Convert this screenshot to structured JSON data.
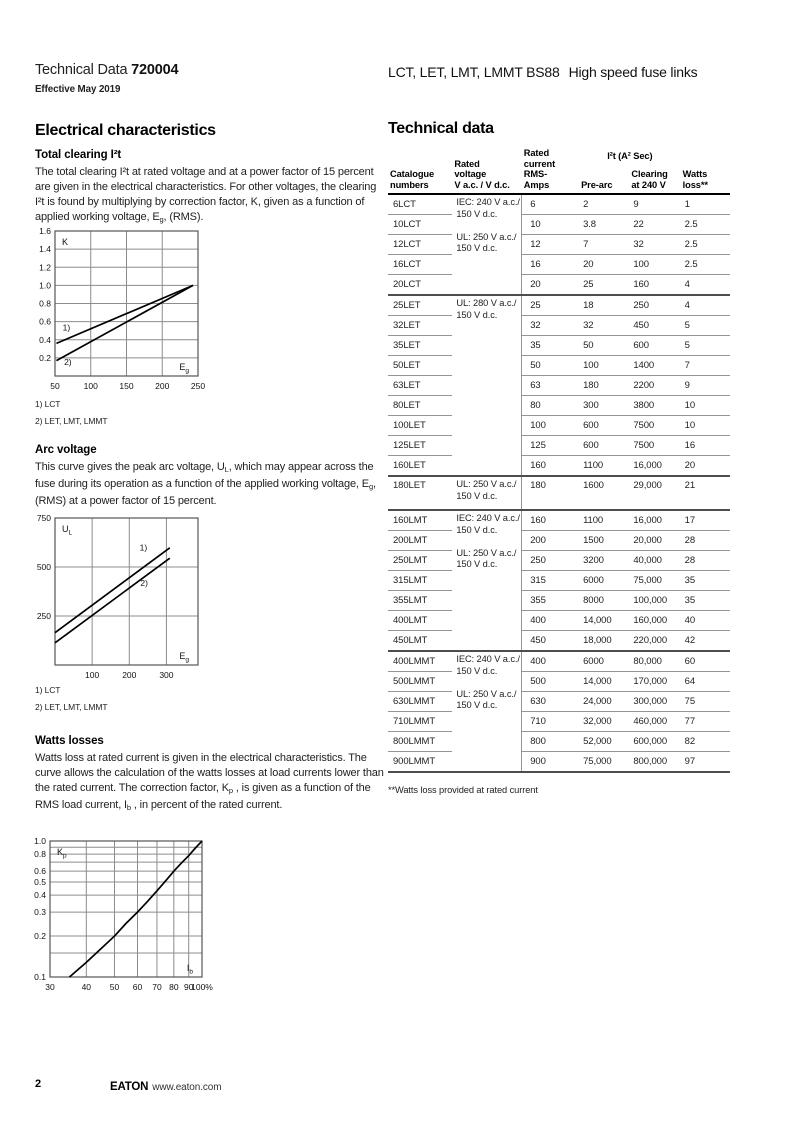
{
  "header": {
    "doc_type": "Technical Data ",
    "doc_number": "720004",
    "effective": "Effective May 2019",
    "product_title": "LCT, LET, LMT, LMMT BS88",
    "product_subtitle": "High speed fuse links"
  },
  "left": {
    "section_title": "Electrical characteristics",
    "clearing": {
      "title": "Total clearing I²t",
      "para": [
        {
          "t": "The total clearing I²t at rated voltage and at a power factor of 15 percent are given in the electrical characteristics. For other voltages, the clearing I²t is found by multiplying by correction factor, K, given as a function of applied working voltage, E"
        },
        {
          "t": "g",
          "sub": true
        },
        {
          "t": ", (RMS)."
        }
      ]
    },
    "arc": {
      "title": "Arc voltage",
      "para": [
        {
          "t": "This curve gives the peak arc voltage, U"
        },
        {
          "t": "L",
          "sub": true
        },
        {
          "t": ", which may appear across the fuse during its operation as a function of the applied working voltage, E"
        },
        {
          "t": "g",
          "sub": true
        },
        {
          "t": ", (RMS) at a power factor of 15 percent."
        }
      ]
    },
    "watts": {
      "title": "Watts losses",
      "para": [
        {
          "t": "Watts loss at rated current is given in the electrical characteristics. The curve allows the calculation of the watts losses at load currents lower than the rated current. The correction factor, K"
        },
        {
          "t": "p",
          "sub": true
        },
        {
          "t": " , is given as a function of the RMS load current, I"
        },
        {
          "t": "b",
          "sub": true
        },
        {
          "t": " , in percent of the rated current."
        }
      ]
    },
    "footnotes": {
      "l1": "1) LCT",
      "l2": "2) LET, LMT, LMMT"
    }
  },
  "right": {
    "section_title": "Technical data",
    "footnote": "**Watts loss provided at rated current",
    "table": {
      "headers": {
        "catalogue": "Catalogue\nnumbers",
        "voltage": "Rated\nvoltage\nV a.c. / V d.c.",
        "current": "Rated\ncurrent\nRMS-\nAmps",
        "i2t_span": "I²t (A² Sec)",
        "prearc": "Pre-arc",
        "clearing": "Clearing\nat 240 V",
        "watts": "Watts\nloss**"
      },
      "groups": [
        {
          "voltage": "IEC: 240 V a.c./\n150 V d.c.\n\nUL: 250 V a.c./\n150 V d.c.",
          "rows": [
            [
              "6LCT",
              "6",
              "2",
              "9",
              "1"
            ],
            [
              "10LCT",
              "10",
              "3.8",
              "22",
              "2.5"
            ],
            [
              "12LCT",
              "12",
              "7",
              "32",
              "2.5"
            ],
            [
              "16LCT",
              "16",
              "20",
              "100",
              "2.5"
            ],
            [
              "20LCT",
              "20",
              "25",
              "160",
              "4"
            ]
          ]
        },
        {
          "voltage": "UL: 280 V a.c./\n150 V d.c.",
          "rows": [
            [
              "25LET",
              "25",
              "18",
              "250",
              "4"
            ],
            [
              "32LET",
              "32",
              "32",
              "450",
              "5"
            ],
            [
              "35LET",
              "35",
              "50",
              "600",
              "5"
            ],
            [
              "50LET",
              "50",
              "100",
              "1400",
              "7"
            ],
            [
              "63LET",
              "63",
              "180",
              "2200",
              "9"
            ],
            [
              "80LET",
              "80",
              "300",
              "3800",
              "10"
            ],
            [
              "100LET",
              "100",
              "600",
              "7500",
              "10"
            ],
            [
              "125LET",
              "125",
              "600",
              "7500",
              "16"
            ],
            [
              "160LET",
              "160",
              "1100",
              "16,000",
              "20"
            ]
          ]
        },
        {
          "voltage": "UL: 250 V a.c./\n150 V d.c.",
          "tall": true,
          "rows": [
            [
              "180LET",
              "180",
              "1600",
              "29,000",
              "21"
            ]
          ]
        },
        {
          "voltage": "IEC: 240 V a.c./\n150 V d.c.\n\nUL: 250 V a.c./\n150 V d.c.",
          "rows": [
            [
              "160LMT",
              "160",
              "1100",
              "16,000",
              "17"
            ],
            [
              "200LMT",
              "200",
              "1500",
              "20,000",
              "28"
            ],
            [
              "250LMT",
              "250",
              "3200",
              "40,000",
              "28"
            ],
            [
              "315LMT",
              "315",
              "6000",
              "75,000",
              "35"
            ],
            [
              "355LMT",
              "355",
              "8000",
              "100,000",
              "35"
            ],
            [
              "400LMT",
              "400",
              "14,000",
              "160,000",
              "40"
            ],
            [
              "450LMT",
              "450",
              "18,000",
              "220,000",
              "42"
            ]
          ]
        },
        {
          "voltage": "IEC: 240 V a.c./\n150 V d.c.\n\nUL: 250 V a.c./\n150 V d.c.",
          "rows": [
            [
              "400LMMT",
              "400",
              "6000",
              "80,000",
              "60"
            ],
            [
              "500LMMT",
              "500",
              "14,000",
              "170,000",
              "64"
            ],
            [
              "630LMMT",
              "630",
              "24,000",
              "300,000",
              "75"
            ],
            [
              "710LMMT",
              "710",
              "32,000",
              "460,000",
              "77"
            ],
            [
              "800LMMT",
              "800",
              "52,000",
              "600,000",
              "82"
            ],
            [
              "900LMMT",
              "900",
              "75,000",
              "800,000",
              "97"
            ]
          ]
        }
      ]
    }
  },
  "footer": {
    "page_number": "2",
    "brand": "EATON",
    "url": "www.eaton.com"
  },
  "chart_data": [
    {
      "name": "total-clearing-correction-factor",
      "type": "line",
      "xscale": "linear",
      "yscale": "linear",
      "xlim": [
        50,
        250
      ],
      "ylim": [
        0,
        1.6
      ],
      "xticks": [
        {
          "v": 50,
          "l": "50"
        },
        {
          "v": 100,
          "l": "100"
        },
        {
          "v": 150,
          "l": "150"
        },
        {
          "v": 200,
          "l": "200"
        },
        {
          "v": 250,
          "l": "250"
        }
      ],
      "yticks": [
        {
          "v": 0.2,
          "l": "0.2"
        },
        {
          "v": 0.4,
          "l": "0.4"
        },
        {
          "v": 0.6,
          "l": "0.6"
        },
        {
          "v": 0.8,
          "l": "0.8"
        },
        {
          "v": 1.0,
          "l": "1.0"
        },
        {
          "v": 1.2,
          "l": "1.2"
        },
        {
          "v": 1.4,
          "l": "1.4"
        },
        {
          "v": 1.6,
          "l": "1.6"
        }
      ],
      "xgrid": [
        100,
        150,
        200
      ],
      "ygrid": [
        0.2,
        0.4,
        0.6,
        0.8,
        1.0,
        1.2,
        1.4
      ],
      "corner_tl": {
        "main": "K",
        "sub": ""
      },
      "corner_br": {
        "main": "E",
        "sub": "g"
      },
      "series": [
        {
          "name": "1) LCT",
          "points": [
            [
              52,
              0.36
            ],
            [
              243,
              1.0
            ]
          ]
        },
        {
          "name": "2) LET, LMT, LMMT",
          "points": [
            [
              52,
              0.17
            ],
            [
              243,
              1.0
            ]
          ]
        }
      ],
      "annotations": [
        {
          "text": "1)",
          "x": 66,
          "y": 0.5
        },
        {
          "text": "2)",
          "x": 68,
          "y": 0.12
        }
      ]
    },
    {
      "name": "peak-arc-voltage",
      "type": "line",
      "xscale": "linear",
      "yscale": "linear",
      "xlim": [
        0,
        385
      ],
      "ylim": [
        0,
        750
      ],
      "xticks": [
        {
          "v": 100,
          "l": "100"
        },
        {
          "v": 200,
          "l": "200"
        },
        {
          "v": 300,
          "l": "300"
        }
      ],
      "yticks": [
        {
          "v": 250,
          "l": "250"
        },
        {
          "v": 500,
          "l": "500"
        },
        {
          "v": 750,
          "l": "750"
        }
      ],
      "xgrid": [
        100,
        200,
        300
      ],
      "ygrid": [
        250,
        500
      ],
      "corner_tl": {
        "main": "U",
        "sub": "L"
      },
      "corner_br": {
        "main": "E",
        "sub": "g"
      },
      "series": [
        {
          "name": "1) LCT",
          "points": [
            [
              0,
              165
            ],
            [
              309,
              598
            ]
          ]
        },
        {
          "name": "2) LET, LMT, LMMT",
          "points": [
            [
              0,
              113
            ],
            [
              309,
              545
            ]
          ]
        }
      ],
      "annotations": [
        {
          "text": "1)",
          "x": 238,
          "y": 585
        },
        {
          "text": "2)",
          "x": 240,
          "y": 402
        }
      ]
    },
    {
      "name": "watts-loss-correction-factor",
      "type": "line",
      "xscale": "log",
      "yscale": "log",
      "xlim": [
        30,
        100
      ],
      "ylim": [
        0.1,
        1.0
      ],
      "xticks": [
        {
          "v": 30,
          "l": "30"
        },
        {
          "v": 40,
          "l": "40"
        },
        {
          "v": 50,
          "l": "50"
        },
        {
          "v": 60,
          "l": "60"
        },
        {
          "v": 70,
          "l": "70"
        },
        {
          "v": 80,
          "l": "80"
        },
        {
          "v": 90,
          "l": "90"
        },
        {
          "v": 100,
          "l": "100%"
        }
      ],
      "yticks": [
        {
          "v": 1.0,
          "l": "1.0"
        },
        {
          "v": 0.8,
          "l": "0.8"
        },
        {
          "v": 0.6,
          "l": "0.6"
        },
        {
          "v": 0.5,
          "l": "0.5"
        },
        {
          "v": 0.4,
          "l": "0.4"
        },
        {
          "v": 0.3,
          "l": "0.3"
        },
        {
          "v": 0.2,
          "l": "0.2"
        },
        {
          "v": 0.1,
          "l": "0.1"
        }
      ],
      "xgrid": [
        40,
        50,
        60,
        70,
        80,
        90
      ],
      "ygrid": [
        0.15,
        0.2,
        0.3,
        0.4,
        0.5,
        0.6,
        0.7,
        0.8,
        0.9
      ],
      "corner_tl": {
        "main": "K",
        "sub": "p"
      },
      "corner_br": {
        "main": "I",
        "sub": "b"
      },
      "series": [
        {
          "name": "Kp",
          "points": [
            [
              35,
              0.1
            ],
            [
              40,
              0.128
            ],
            [
              45,
              0.162
            ],
            [
              50,
              0.2
            ],
            [
              55,
              0.25
            ],
            [
              60,
              0.3
            ],
            [
              65,
              0.36
            ],
            [
              70,
              0.43
            ],
            [
              75,
              0.51
            ],
            [
              80,
              0.6
            ],
            [
              85,
              0.69
            ],
            [
              90,
              0.78
            ],
            [
              95,
              0.89
            ],
            [
              100,
              1.0
            ]
          ]
        }
      ],
      "annotations": []
    }
  ]
}
